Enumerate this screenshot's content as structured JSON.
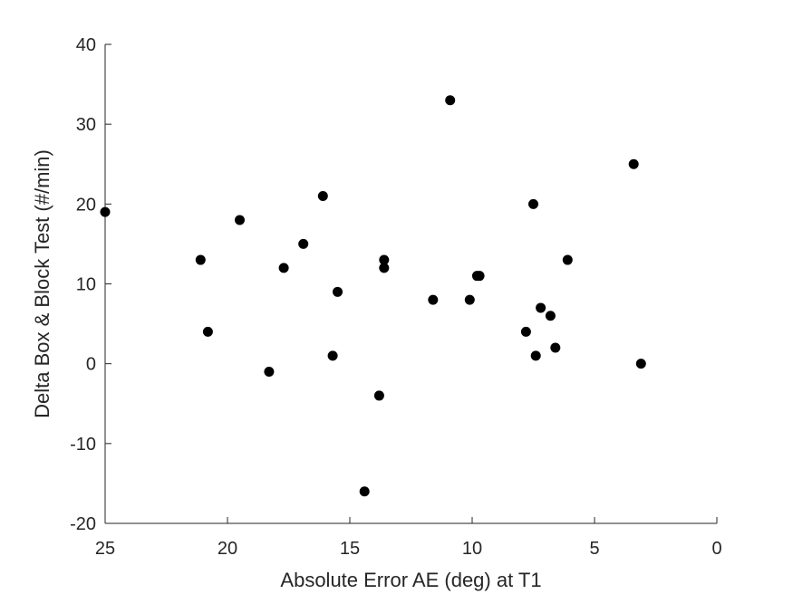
{
  "chart_data": {
    "type": "scatter",
    "xlabel": "Absolute Error AE (deg) at T1",
    "ylabel": "Delta Box & Block Test (#/min)",
    "xlim": [
      0,
      25
    ],
    "x_reversed": true,
    "ylim": [
      -20,
      40
    ],
    "x_ticks": [
      25,
      20,
      15,
      10,
      5,
      0
    ],
    "y_ticks": [
      40,
      30,
      20,
      10,
      0,
      -10,
      -20
    ],
    "grid": false,
    "legend": "none",
    "marker_color": "#000000",
    "axis_color": "#262626",
    "points": [
      {
        "x": 25.0,
        "y": 19
      },
      {
        "x": 21.1,
        "y": 13
      },
      {
        "x": 20.8,
        "y": 4
      },
      {
        "x": 19.5,
        "y": 18
      },
      {
        "x": 18.3,
        "y": -1
      },
      {
        "x": 17.7,
        "y": 12
      },
      {
        "x": 16.9,
        "y": 15
      },
      {
        "x": 16.1,
        "y": 21
      },
      {
        "x": 15.7,
        "y": 1
      },
      {
        "x": 15.5,
        "y": 9
      },
      {
        "x": 14.4,
        "y": -16
      },
      {
        "x": 13.8,
        "y": -4
      },
      {
        "x": 13.6,
        "y": 12
      },
      {
        "x": 13.6,
        "y": 13
      },
      {
        "x": 11.6,
        "y": 8
      },
      {
        "x": 10.9,
        "y": 33
      },
      {
        "x": 10.1,
        "y": 8
      },
      {
        "x": 9.8,
        "y": 11
      },
      {
        "x": 9.7,
        "y": 11
      },
      {
        "x": 7.8,
        "y": 4
      },
      {
        "x": 7.5,
        "y": 20
      },
      {
        "x": 7.4,
        "y": 1
      },
      {
        "x": 7.2,
        "y": 7
      },
      {
        "x": 6.8,
        "y": 6
      },
      {
        "x": 6.6,
        "y": 2
      },
      {
        "x": 6.1,
        "y": 13
      },
      {
        "x": 3.4,
        "y": 25
      },
      {
        "x": 3.1,
        "y": 0
      }
    ]
  }
}
